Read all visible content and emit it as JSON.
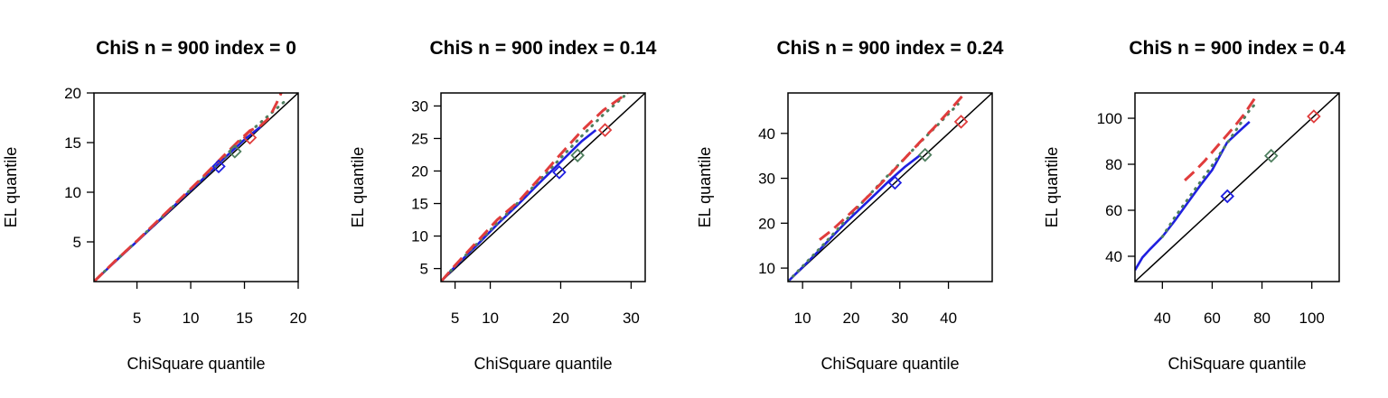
{
  "chart_data": [
    {
      "type": "line",
      "title": "ChiS n = 900 index = 0",
      "xlabel": "ChiSquare quantile",
      "ylabel": "EL quantile",
      "xlim": [
        1,
        20
      ],
      "ylim": [
        1,
        20
      ],
      "xticks": [
        5,
        10,
        15,
        20
      ],
      "yticks": [
        5,
        10,
        15,
        20
      ],
      "grid": false,
      "series": [
        {
          "color": "#1f1fe0",
          "dash": "solid",
          "x": [
            1,
            3,
            5,
            7,
            9,
            11,
            13,
            15,
            16.5
          ],
          "y": [
            1,
            3.05,
            5.05,
            7.1,
            9.2,
            11.2,
            13.3,
            15.3,
            16.6
          ]
        },
        {
          "color": "#4f7f5f",
          "dash": "dotted",
          "x": [
            1,
            3,
            5,
            7,
            9,
            11,
            13,
            15,
            17,
            18.7
          ],
          "y": [
            1,
            3.1,
            5.1,
            7.15,
            9.25,
            11.3,
            13.4,
            15.6,
            17.5,
            19.1
          ]
        },
        {
          "color": "#e03c3c",
          "dash": "dashed",
          "x": [
            1,
            3,
            5,
            7,
            9,
            11,
            13,
            14.5,
            15.5,
            16.5,
            17.3,
            18,
            18.5
          ],
          "y": [
            1,
            3.1,
            5.1,
            7.2,
            9.3,
            11.4,
            13.6,
            15.2,
            16.2,
            16.7,
            17.5,
            19,
            20.2
          ]
        }
      ],
      "markers": [
        {
          "color": "#1f1fe0",
          "x": 12.6,
          "y": 12.6
        },
        {
          "color": "#4f7f5f",
          "x": 14.1,
          "y": 14.1
        },
        {
          "color": "#e03c3c",
          "x": 15.5,
          "y": 15.5
        }
      ],
      "reference_line": true
    },
    {
      "type": "line",
      "title": "ChiS n = 900 index = 0.14",
      "xlabel": "ChiSquare quantile",
      "ylabel": "EL quantile",
      "xlim": [
        3,
        32
      ],
      "ylim": [
        3,
        32
      ],
      "xticks": [
        5,
        10,
        20,
        30
      ],
      "yticks": [
        5,
        10,
        15,
        20,
        25,
        30
      ],
      "grid": false,
      "series": [
        {
          "color": "#1f1fe0",
          "dash": "solid",
          "x": [
            3,
            5,
            8,
            11,
            14,
            17,
            20,
            23,
            25
          ],
          "y": [
            3,
            5.3,
            8.5,
            11.8,
            14.9,
            18.2,
            21.4,
            24.6,
            26.3
          ]
        },
        {
          "color": "#4f7f5f",
          "dash": "dotted",
          "x": [
            3,
            5,
            8,
            11,
            14,
            17,
            20,
            23,
            26,
            29
          ],
          "y": [
            3,
            5.4,
            8.7,
            12.0,
            15.2,
            18.6,
            22.0,
            25.4,
            28.6,
            31.5
          ]
        },
        {
          "color": "#e03c3c",
          "dash": "dashed",
          "x": [
            3,
            5,
            8,
            11,
            14,
            17,
            20,
            23,
            26,
            29.5
          ],
          "y": [
            3,
            5.5,
            9.0,
            12.5,
            15.3,
            18.9,
            22.6,
            26.2,
            29.3,
            32
          ]
        }
      ],
      "markers": [
        {
          "color": "#1f1fe0",
          "x": 19.8,
          "y": 19.8
        },
        {
          "color": "#4f7f5f",
          "x": 22.4,
          "y": 22.4
        },
        {
          "color": "#e03c3c",
          "x": 26.3,
          "y": 26.3
        }
      ],
      "reference_line": true
    },
    {
      "type": "line",
      "title": "ChiS n = 900 index = 0.24",
      "xlabel": "ChiSquare quantile",
      "ylabel": "EL quantile",
      "xlim": [
        7,
        49
      ],
      "ylim": [
        7,
        49
      ],
      "xticks": [
        10,
        20,
        30,
        40
      ],
      "yticks": [
        10,
        20,
        30,
        40
      ],
      "grid": false,
      "series": [
        {
          "color": "#1f1fe0",
          "dash": "solid",
          "x": [
            7,
            10,
            13,
            16,
            19,
            22,
            25,
            28,
            31,
            34
          ],
          "y": [
            7,
            10.2,
            13.5,
            16.9,
            20.3,
            23.4,
            26.5,
            29.6,
            32.5,
            35.0
          ]
        },
        {
          "color": "#4f7f5f",
          "dash": "dotted",
          "x": [
            7,
            10,
            14,
            18,
            22,
            26,
            30,
            34,
            38,
            42
          ],
          "y": [
            7,
            10.4,
            14.9,
            19.6,
            24.3,
            28.9,
            33.3,
            37.8,
            42.1,
            46.5
          ]
        },
        {
          "color": "#e03c3c",
          "dash": "dashed",
          "x": [
            13.5,
            16,
            19,
            22,
            25,
            28,
            31,
            34,
            37,
            40,
            43
          ],
          "y": [
            16.3,
            18.4,
            21.4,
            24.4,
            27.6,
            30.9,
            34.4,
            37.9,
            41.2,
            44.8,
            48.5
          ]
        }
      ],
      "markers": [
        {
          "color": "#1f1fe0",
          "x": 29.0,
          "y": 29.0
        },
        {
          "color": "#4f7f5f",
          "x": 35.2,
          "y": 35.2
        },
        {
          "color": "#e03c3c",
          "x": 42.6,
          "y": 42.6
        }
      ],
      "reference_line": true
    },
    {
      "type": "line",
      "title": "ChiS n = 900 index = 0.4",
      "xlabel": "ChiSquare quantile",
      "ylabel": "EL quantile",
      "xlim": [
        29,
        111
      ],
      "ylim": [
        29,
        111
      ],
      "xticks": [
        40,
        60,
        80,
        100
      ],
      "yticks": [
        40,
        60,
        80,
        100
      ],
      "grid": false,
      "series": [
        {
          "color": "#1f1fe0",
          "dash": "solid",
          "x": [
            29,
            32,
            35,
            40,
            45,
            50,
            55,
            60,
            63,
            66,
            70,
            75
          ],
          "y": [
            34,
            39.5,
            43.0,
            48.5,
            55.5,
            63.0,
            70.5,
            77.5,
            83.5,
            89.5,
            93.5,
            98.5
          ]
        },
        {
          "color": "#4f7f5f",
          "dash": "dotted",
          "x": [
            40,
            45,
            50,
            55,
            60,
            65,
            70,
            75,
            78
          ],
          "y": [
            48.5,
            57.0,
            64.5,
            72.0,
            79.5,
            87.5,
            95.5,
            103.5,
            107
          ]
        },
        {
          "color": "#e03c3c",
          "dash": "dashed",
          "x": [
            49,
            53,
            57,
            61,
            65,
            69,
            73,
            77
          ],
          "y": [
            73.0,
            77.0,
            81.5,
            86.5,
            91.5,
            96.5,
            102.0,
            108.5
          ]
        }
      ],
      "markers": [
        {
          "color": "#1f1fe0",
          "x": 66.1,
          "y": 66.1
        },
        {
          "color": "#4f7f5f",
          "x": 83.7,
          "y": 83.7
        },
        {
          "color": "#e03c3c",
          "x": 100.8,
          "y": 100.8
        }
      ],
      "reference_line": true
    }
  ]
}
